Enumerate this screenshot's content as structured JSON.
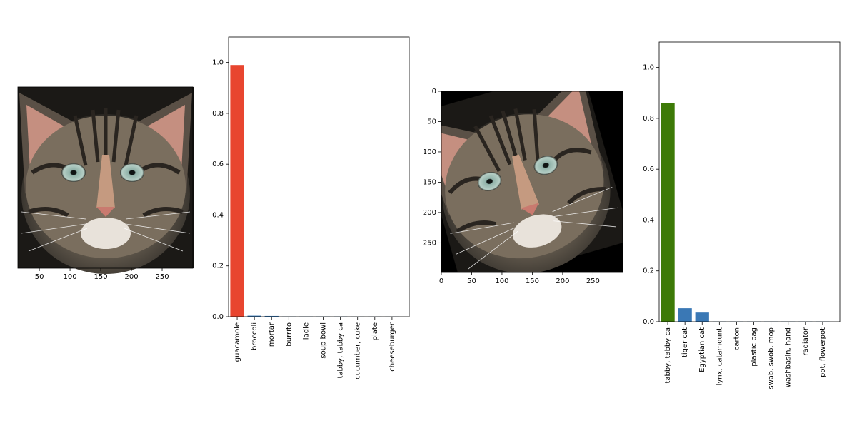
{
  "chart_data": [
    {
      "type": "image",
      "panel": "original-cat-image",
      "xticks": [
        50,
        100,
        150,
        200,
        250
      ],
      "xlim": [
        15,
        300
      ],
      "yticks": [],
      "yaxis": "hidden"
    },
    {
      "type": "bar",
      "categories": [
        "guacamole",
        "broccoli",
        "mortar",
        "burrito",
        "ladle",
        "soup bowl",
        "tabby, tabby ca",
        "cucumber, cuke",
        "plate",
        "cheeseburger"
      ],
      "values": [
        0.99,
        0.004,
        0.003,
        0.001,
        0.001,
        0.001,
        0.001,
        0.0005,
        0.0005,
        0.0005
      ],
      "colors": [
        "#e8452f",
        "#3a78b5",
        "#3a78b5",
        "#3a78b5",
        "#3a78b5",
        "#3a78b5",
        "#3a78b5",
        "#3a78b5",
        "#3a78b5",
        "#3a78b5"
      ],
      "yticks": [
        0.0,
        0.2,
        0.4,
        0.6,
        0.8,
        1.0
      ],
      "ylim": [
        0,
        1.1
      ],
      "title": "",
      "xlabel": "",
      "ylabel": ""
    },
    {
      "type": "image",
      "panel": "rotated-cat-image",
      "xticks": [
        0,
        50,
        100,
        150,
        200,
        250
      ],
      "xlim": [
        0,
        299
      ],
      "yticks": [
        0,
        50,
        100,
        150,
        200,
        250
      ],
      "ylim": [
        0,
        299
      ]
    },
    {
      "type": "bar",
      "categories": [
        "tabby, tabby ca",
        "tiger cat",
        "Egyptian cat",
        "lynx, catamount",
        "carton",
        "plastic bag",
        "swab, swob, mop",
        "washbasin, hand",
        "radiator",
        "pot, flowerpot"
      ],
      "values": [
        0.86,
        0.053,
        0.036,
        0.001,
        0.001,
        0.001,
        0.001,
        0.001,
        0.001,
        0.001
      ],
      "colors": [
        "#3d7a07",
        "#3a78b5",
        "#3a78b5",
        "#3a78b5",
        "#3a78b5",
        "#3a78b5",
        "#3a78b5",
        "#3a78b5",
        "#3a78b5",
        "#3a78b5"
      ],
      "yticks": [
        0.0,
        0.2,
        0.4,
        0.6,
        0.8,
        1.0
      ],
      "ylim": [
        0,
        1.1
      ],
      "title": "",
      "xlabel": "",
      "ylabel": ""
    }
  ]
}
